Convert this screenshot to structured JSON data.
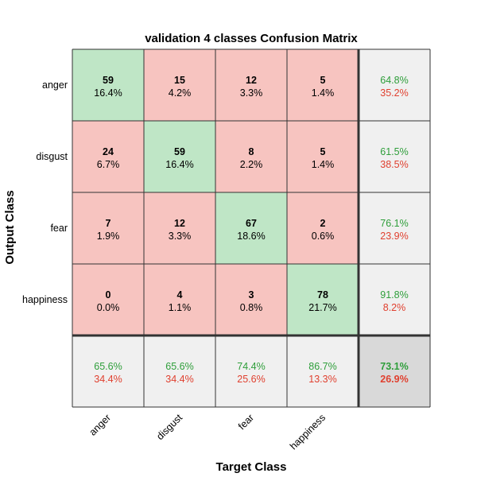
{
  "chart_data": {
    "type": "heatmap",
    "title": "validation 4 classes Confusion Matrix",
    "xlabel": "Target Class",
    "ylabel": "Output Class",
    "classes": [
      "anger",
      "disgust",
      "fear",
      "happiness"
    ],
    "matrix": [
      [
        59,
        15,
        12,
        5
      ],
      [
        24,
        59,
        8,
        5
      ],
      [
        7,
        12,
        67,
        2
      ],
      [
        0,
        4,
        3,
        78
      ]
    ],
    "percentages": [
      [
        "16.4%",
        "4.2%",
        "3.3%",
        "1.4%"
      ],
      [
        "6.7%",
        "16.4%",
        "2.2%",
        "1.4%"
      ],
      [
        "1.9%",
        "3.3%",
        "18.6%",
        "0.6%"
      ],
      [
        "0.0%",
        "1.1%",
        "0.8%",
        "21.7%"
      ]
    ],
    "row_summary": [
      {
        "correct": "64.8%",
        "incorrect": "35.2%"
      },
      {
        "correct": "61.5%",
        "incorrect": "38.5%"
      },
      {
        "correct": "76.1%",
        "incorrect": "23.9%"
      },
      {
        "correct": "91.8%",
        "incorrect": "8.2%"
      }
    ],
    "column_summary": [
      {
        "correct": "65.6%",
        "incorrect": "34.4%"
      },
      {
        "correct": "65.6%",
        "incorrect": "34.4%"
      },
      {
        "correct": "74.4%",
        "incorrect": "25.6%"
      },
      {
        "correct": "86.7%",
        "incorrect": "13.3%"
      }
    ],
    "overall": {
      "correct": "73.1%",
      "incorrect": "26.9%"
    }
  },
  "colors": {
    "diagonal_fill": "#bfe6c6",
    "offdiagonal_fill": "#f7c4c0",
    "summary_fill": "#f0f0f0",
    "overall_fill": "#d9d9d9",
    "correct_text": "#2e9e3a",
    "incorrect_text": "#e0402f",
    "grid_line": "#333333"
  }
}
